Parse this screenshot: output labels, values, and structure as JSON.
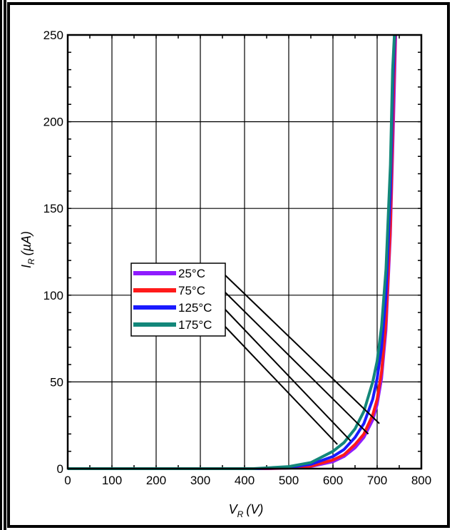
{
  "chart_data": {
    "type": "line",
    "xlabel": "V_R (V)",
    "ylabel": "I_R (µA)",
    "xlabel_main": "V",
    "xlabel_sub": "R",
    "xlabel_unit": "(V)",
    "ylabel_main": "I",
    "ylabel_sub": "R",
    "ylabel_unit": "(µA)",
    "xlim": [
      0,
      800
    ],
    "ylim": [
      0,
      250
    ],
    "x_ticks": [
      0,
      100,
      200,
      300,
      400,
      500,
      600,
      700,
      800
    ],
    "y_ticks": [
      0,
      50,
      100,
      150,
      200,
      250
    ],
    "x_tick_labels": [
      "0",
      "100",
      "200",
      "300",
      "400",
      "500",
      "600",
      "700",
      "800"
    ],
    "y_tick_labels": [
      "0",
      "50",
      "100",
      "150",
      "200",
      "250"
    ],
    "grid": true,
    "legend_position": "center-left",
    "series": [
      {
        "name": "25°C",
        "color": "#8f1cff",
        "x": [
          0,
          450,
          500,
          550,
          600,
          625,
          650,
          670,
          690,
          700,
          710,
          720,
          730,
          738,
          742
        ],
        "y": [
          0,
          0,
          0.3,
          1.2,
          4,
          7,
          12,
          18,
          28,
          37,
          52,
          80,
          135,
          210,
          250
        ]
      },
      {
        "name": "75°C",
        "color": "#ff1a1a",
        "x": [
          0,
          440,
          500,
          550,
          600,
          625,
          650,
          670,
          690,
          700,
          710,
          720,
          730,
          737,
          741
        ],
        "y": [
          0,
          0,
          0.4,
          1.5,
          5,
          8,
          14,
          20,
          31,
          40,
          56,
          85,
          140,
          215,
          250
        ]
      },
      {
        "name": "125°C",
        "color": "#1a1aff",
        "x": [
          0,
          430,
          500,
          550,
          600,
          625,
          650,
          670,
          690,
          700,
          710,
          720,
          730,
          736,
          740
        ],
        "y": [
          0,
          0,
          0.8,
          2.5,
          7,
          11,
          18,
          26,
          40,
          52,
          70,
          100,
          160,
          225,
          250
        ]
      },
      {
        "name": "175°C",
        "color": "#13877a",
        "x": [
          0,
          420,
          500,
          550,
          600,
          625,
          650,
          670,
          690,
          700,
          710,
          720,
          730,
          735,
          739
        ],
        "y": [
          0,
          0,
          1.2,
          3.5,
          10,
          15,
          23,
          33,
          50,
          62,
          82,
          115,
          175,
          230,
          250
        ]
      }
    ],
    "legend_pointers": [
      {
        "from_series": "25°C",
        "to_x": 705,
        "to_y": 26
      },
      {
        "from_series": "75°C",
        "to_x": 680,
        "to_y": 20
      },
      {
        "from_series": "125°C",
        "to_x": 640,
        "to_y": 16
      },
      {
        "from_series": "175°C",
        "to_x": 610,
        "to_y": 14
      }
    ]
  }
}
